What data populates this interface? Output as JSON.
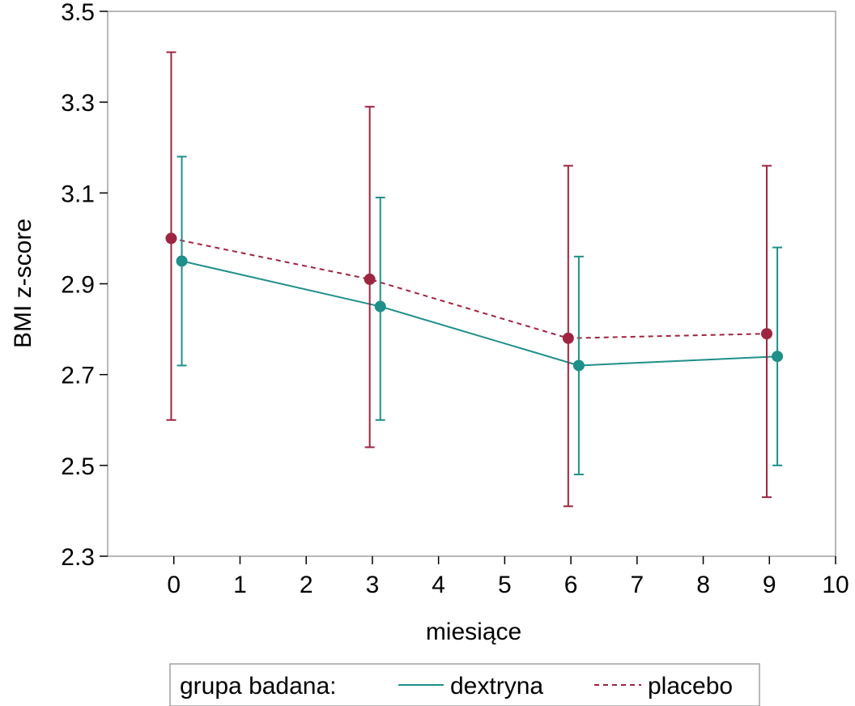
{
  "chart_data": {
    "type": "line",
    "title": "",
    "xlabel": "miesiące",
    "ylabel": "BMI z-score",
    "xlim": [
      -1,
      10
    ],
    "ylim": [
      2.3,
      3.5
    ],
    "x_ticks": [
      "0",
      "1",
      "2",
      "3",
      "4",
      "5",
      "6",
      "7",
      "8",
      "9",
      "10"
    ],
    "y_ticks": [
      "2.3",
      "2.5",
      "2.7",
      "2.9",
      "3.1",
      "3.3",
      "3.5"
    ],
    "grid": false,
    "legend": {
      "title": "grupa badana:",
      "position": "bottom"
    },
    "series": [
      {
        "name": "dextryna",
        "color": "#1f8f8a",
        "line_style": "solid",
        "x_offset": 0.12,
        "x": [
          0,
          3,
          6,
          9
        ],
        "y": [
          2.95,
          2.85,
          2.72,
          2.74
        ],
        "y_low": [
          2.72,
          2.6,
          2.48,
          2.5
        ],
        "y_high": [
          3.18,
          3.09,
          2.96,
          2.98
        ]
      },
      {
        "name": "placebo",
        "color": "#9e2540",
        "line_style": "dashed",
        "x_offset": -0.04,
        "x": [
          0,
          3,
          6,
          9
        ],
        "y": [
          3.0,
          2.91,
          2.78,
          2.79
        ],
        "y_low": [
          2.6,
          2.54,
          2.41,
          2.43
        ],
        "y_high": [
          3.41,
          3.29,
          3.16,
          3.16
        ]
      }
    ]
  }
}
